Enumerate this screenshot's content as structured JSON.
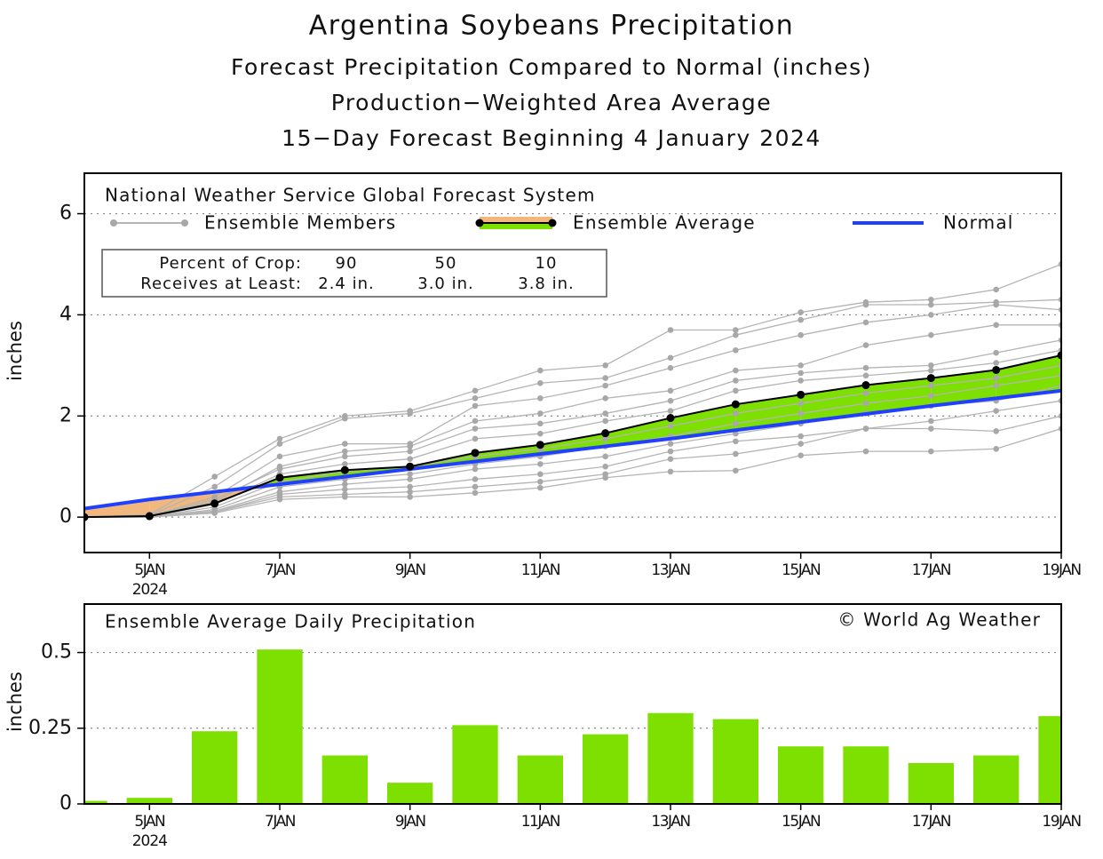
{
  "chart_data": [
    {
      "type": "line",
      "title": "Argentina Soybeans Precipitation",
      "subtitle": [
        "Forecast Precipitation Compared to Normal (inches)",
        "Production−Weighted Area Average",
        "15−Day Forecast Beginning 4 January 2024"
      ],
      "legend_title": "National Weather Service Global Forecast System",
      "ylabel": "inches",
      "x": [
        "2024-01-04",
        "2024-01-05",
        "2024-01-06",
        "2024-01-07",
        "2024-01-08",
        "2024-01-09",
        "2024-01-10",
        "2024-01-11",
        "2024-01-12",
        "2024-01-13",
        "2024-01-14",
        "2024-01-15",
        "2024-01-16",
        "2024-01-17",
        "2024-01-18",
        "2024-01-19"
      ],
      "xlim": [
        "2024-01-04",
        "2024-01-19"
      ],
      "xticks": [
        {
          "value": "2024-01-05",
          "label": "5JAN"
        },
        {
          "value": "2024-01-07",
          "label": "7JAN"
        },
        {
          "value": "2024-01-09",
          "label": "9JAN"
        },
        {
          "value": "2024-01-11",
          "label": "11JAN"
        },
        {
          "value": "2024-01-13",
          "label": "13JAN"
        },
        {
          "value": "2024-01-15",
          "label": "15JAN"
        },
        {
          "value": "2024-01-17",
          "label": "17JAN"
        },
        {
          "value": "2024-01-19",
          "label": "19JAN"
        }
      ],
      "x_year_label": "2024",
      "ylim": [
        -0.7,
        6.8
      ],
      "yticks": [
        0,
        2,
        4,
        6
      ],
      "grid": true,
      "members": {
        "name": "Ensemble Members",
        "color": "#b4b4b4",
        "values": [
          [
            0,
            0.05,
            0.8,
            1.55,
            2.0,
            2.1,
            2.5,
            2.9,
            3.0,
            3.7,
            3.7,
            4.05,
            4.25,
            4.3,
            4.5,
            5.0
          ],
          [
            0,
            0.03,
            0.6,
            1.45,
            1.95,
            2.05,
            2.35,
            2.65,
            2.75,
            3.15,
            3.6,
            3.9,
            4.2,
            4.2,
            4.25,
            4.3
          ],
          [
            0,
            0.02,
            0.4,
            1.2,
            1.45,
            1.45,
            2.2,
            2.35,
            2.6,
            2.95,
            3.3,
            3.6,
            3.85,
            4.0,
            4.2,
            4.1
          ],
          [
            0,
            0.02,
            0.3,
            1.0,
            1.3,
            1.4,
            1.9,
            2.05,
            2.35,
            2.5,
            2.9,
            3.0,
            3.4,
            3.6,
            3.8,
            3.8
          ],
          [
            0,
            0.01,
            0.35,
            0.95,
            1.2,
            1.3,
            1.75,
            1.85,
            2.05,
            2.3,
            2.7,
            2.85,
            2.95,
            3.0,
            3.25,
            3.5
          ],
          [
            0,
            0.01,
            0.25,
            0.85,
            1.05,
            1.15,
            1.55,
            1.65,
            1.9,
            2.1,
            2.5,
            2.7,
            2.8,
            2.9,
            3.05,
            3.3
          ],
          [
            0,
            0,
            0.2,
            0.7,
            0.9,
            1.0,
            1.2,
            1.35,
            1.55,
            1.8,
            2.05,
            2.25,
            2.45,
            2.6,
            2.75,
            3.0
          ],
          [
            0,
            0,
            0.15,
            0.6,
            0.75,
            0.85,
            1.05,
            1.2,
            1.4,
            1.6,
            1.85,
            2.05,
            2.25,
            2.4,
            2.6,
            2.8
          ],
          [
            0,
            0,
            0.12,
            0.5,
            0.65,
            0.75,
            0.95,
            1.05,
            1.2,
            1.45,
            1.65,
            1.85,
            2.05,
            2.2,
            2.3,
            2.6
          ],
          [
            0,
            0,
            0.1,
            0.45,
            0.55,
            0.6,
            0.75,
            0.85,
            1.0,
            1.3,
            1.5,
            1.6,
            1.75,
            1.9,
            2.1,
            2.3
          ],
          [
            0,
            0,
            0.1,
            0.4,
            0.45,
            0.5,
            0.6,
            0.7,
            0.85,
            1.15,
            1.25,
            1.45,
            1.75,
            1.75,
            1.7,
            2.0
          ],
          [
            0,
            0,
            0.08,
            0.35,
            0.4,
            0.4,
            0.48,
            0.58,
            0.78,
            0.9,
            0.92,
            1.22,
            1.3,
            1.3,
            1.35,
            1.75
          ]
        ]
      },
      "series": [
        {
          "name": "Ensemble Average",
          "color": "#000000",
          "fill_above": "#7ee000",
          "fill_below": "#f2b77c",
          "values": [
            0,
            0.02,
            0.27,
            0.78,
            0.93,
            1.0,
            1.27,
            1.43,
            1.66,
            1.96,
            2.23,
            2.42,
            2.61,
            2.75,
            2.91,
            3.2
          ]
        },
        {
          "name": "Normal",
          "color": "#2040ff",
          "values": [
            0.17,
            0.35,
            0.5,
            0.65,
            0.8,
            0.95,
            1.1,
            1.25,
            1.4,
            1.55,
            1.72,
            1.88,
            2.04,
            2.2,
            2.35,
            2.5
          ]
        }
      ],
      "crop_table": {
        "row_labels": [
          "Percent of Crop:",
          "Receives at Least:"
        ],
        "percent": [
          90,
          50,
          10
        ],
        "amounts": [
          "2.4 in.",
          "3.0 in.",
          "3.8 in."
        ]
      }
    },
    {
      "type": "bar",
      "title": "Ensemble Average Daily Precipitation",
      "credit": "© World Ag Weather",
      "ylabel": "inches",
      "x": [
        "2024-01-04",
        "2024-01-05",
        "2024-01-06",
        "2024-01-07",
        "2024-01-08",
        "2024-01-09",
        "2024-01-10",
        "2024-01-11",
        "2024-01-12",
        "2024-01-13",
        "2024-01-14",
        "2024-01-15",
        "2024-01-16",
        "2024-01-17",
        "2024-01-18",
        "2024-01-19"
      ],
      "xlim": [
        "2024-01-04",
        "2024-01-19"
      ],
      "xticks": [
        {
          "value": "2024-01-05",
          "label": "5JAN"
        },
        {
          "value": "2024-01-07",
          "label": "7JAN"
        },
        {
          "value": "2024-01-09",
          "label": "9JAN"
        },
        {
          "value": "2024-01-11",
          "label": "11JAN"
        },
        {
          "value": "2024-01-13",
          "label": "13JAN"
        },
        {
          "value": "2024-01-15",
          "label": "15JAN"
        },
        {
          "value": "2024-01-17",
          "label": "17JAN"
        },
        {
          "value": "2024-01-19",
          "label": "19JAN"
        }
      ],
      "x_year_label": "2024",
      "ylim": [
        0,
        0.66
      ],
      "yticks": [
        0,
        0.25,
        0.5
      ],
      "grid": true,
      "color": "#7ee000",
      "values": [
        0.01,
        0.02,
        0.24,
        0.51,
        0.16,
        0.07,
        0.26,
        0.16,
        0.23,
        0.3,
        0.28,
        0.19,
        0.19,
        0.135,
        0.16,
        0.29
      ]
    }
  ]
}
